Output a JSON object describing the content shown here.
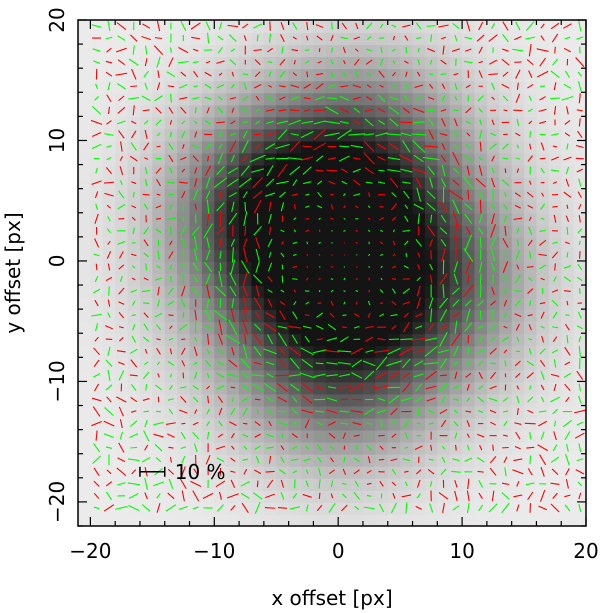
{
  "chart_data": {
    "type": "vector-field-over-image",
    "title": "",
    "xlabel": "x offset [px]",
    "ylabel": "y offset [px]",
    "xlim": [
      -21,
      20
    ],
    "ylim": [
      -22,
      20
    ],
    "xticks": [
      -20,
      -10,
      0,
      10,
      20
    ],
    "yticks": [
      -20,
      -10,
      0,
      10,
      20
    ],
    "xtick_labels": [
      "−20",
      "−10",
      "0",
      "10",
      "20"
    ],
    "ytick_labels": [
      "−20",
      "−10",
      "0",
      "10",
      "20"
    ],
    "minor_tick_step": 2,
    "grid": false,
    "background_image": {
      "description_free": true,
      "colormap": "grayscale",
      "peak_center": [
        0,
        0
      ],
      "secondary_blobs": [
        {
          "center": [
            -5,
            5
          ],
          "level": 0.55
        },
        {
          "center": [
            3,
            10
          ],
          "level": 0.35
        },
        {
          "center": [
            0,
            -10
          ],
          "level": 0.35
        },
        {
          "center": [
            8,
            -2
          ],
          "level": 0.3
        }
      ]
    },
    "vector_grid": {
      "x_range": [
        -20,
        19
      ],
      "y_range": [
        -21,
        19
      ],
      "step": 1
    },
    "series": [
      {
        "name": "",
        "color": "#ff0000"
      },
      {
        "name": "",
        "color": "#00ff00"
      }
    ],
    "scale_bar": {
      "label": "10 %",
      "position": [
        -16,
        -17.5
      ],
      "length_units": 2
    }
  }
}
